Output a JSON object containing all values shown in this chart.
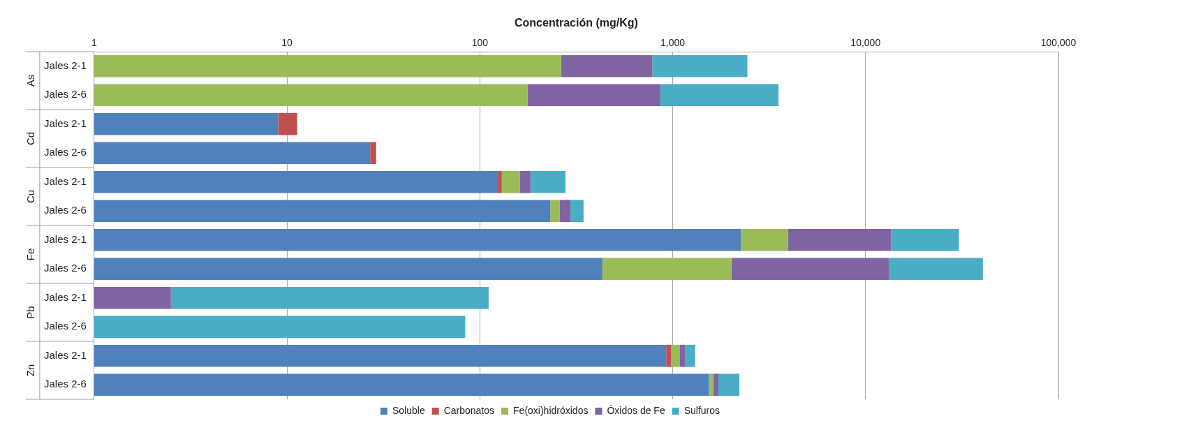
{
  "chart_data": {
    "type": "bar",
    "orientation": "horizontal",
    "stacked": true,
    "log": "x",
    "xlabel": "Concentración (mg/Kg)",
    "categories": [
      "Jales 2-1",
      "Jales 2-6",
      "Jales 2-1",
      "Jales 2-6",
      "Jales 2-1",
      "Jales 2-6",
      "Jales 2-1",
      "Jales 2-6",
      "Jales 2-1",
      "Jales 2-6",
      "Jales 2-1",
      "Jales 2-6"
    ],
    "annotations": [
      "As",
      "Cd",
      "Cu",
      "Fe",
      "Pb",
      "Zn"
    ],
    "series": [
      {
        "name": "Soluble",
        "color": "#4f81bd",
        "values": [
          null,
          null,
          9.0,
          27,
          124,
          232,
          2255,
          432,
          null,
          null,
          925,
          1542
        ]
      },
      {
        "name": "Carbonatos",
        "color": "#c0504d",
        "values": [
          null,
          null,
          2.3,
          2,
          6,
          null,
          null,
          null,
          null,
          null,
          58,
          null
        ]
      },
      {
        "name": "Fe(oxi)hidróxidos",
        "color": "#9bbb59",
        "values": [
          264,
          177,
          null,
          null,
          31,
          27,
          1705,
          1586,
          null,
          null,
          108,
          82
        ]
      },
      {
        "name": "Óxidos de Fe",
        "color": "#8064a2",
        "values": [
          521,
          686,
          null,
          null,
          22,
          36,
          9590,
          11170,
          2.5,
          null,
          67,
          101
        ]
      },
      {
        "name": "Sulfuros",
        "color": "#4bacc6",
        "values": [
          1655,
          2677,
          null,
          null,
          95,
          50,
          16950,
          27400,
          108.6,
          84,
          150,
          493
        ]
      }
    ],
    "xlim": [
      1,
      100000
    ],
    "xticks": [
      1,
      10,
      100,
      {
        "value": 1000,
        "label": "1,000"
      },
      {
        "value": 10000,
        "label": "10,000"
      },
      {
        "value": 100000,
        "label": "100,000"
      }
    ],
    "grid": "x",
    "legend": "bottom"
  }
}
